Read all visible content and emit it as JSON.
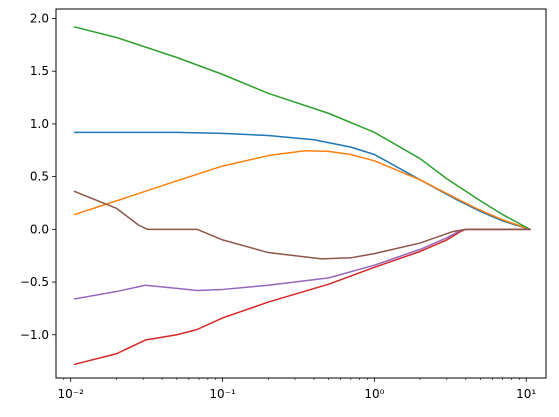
{
  "chart_data": {
    "type": "line",
    "title": "",
    "xlabel": "",
    "ylabel": "",
    "xscale": "log",
    "xlim": [
      0.008,
      13.5
    ],
    "ylim": [
      -1.41,
      2.09
    ],
    "grid": false,
    "legend": "none",
    "x_ticks": [
      {
        "value": 0.01,
        "label": "10⁻²"
      },
      {
        "value": 0.1,
        "label": "10⁻¹"
      },
      {
        "value": 1,
        "label": "10⁰"
      },
      {
        "value": 10,
        "label": "10¹"
      }
    ],
    "y_ticks": [
      {
        "value": 2.0,
        "label": "2.0"
      },
      {
        "value": 1.5,
        "label": "1.5"
      },
      {
        "value": 1.0,
        "label": "1.0"
      },
      {
        "value": 0.5,
        "label": "0.5"
      },
      {
        "value": 0.0,
        "label": "0.0"
      },
      {
        "value": -0.5,
        "label": "−0.5"
      },
      {
        "value": -1.0,
        "label": "−1.0"
      }
    ],
    "series": [
      {
        "color": "#1f77b4",
        "points": [
          [
            0.0106,
            0.92
          ],
          [
            0.02,
            0.92
          ],
          [
            0.05,
            0.92
          ],
          [
            0.1,
            0.91
          ],
          [
            0.2,
            0.89
          ],
          [
            0.4,
            0.85
          ],
          [
            0.7,
            0.78
          ],
          [
            1.0,
            0.71
          ],
          [
            2.0,
            0.47
          ],
          [
            3.5,
            0.28
          ],
          [
            5.0,
            0.17
          ],
          [
            7.0,
            0.08
          ],
          [
            10.6,
            0.0
          ]
        ]
      },
      {
        "color": "#ff7f0e",
        "points": [
          [
            0.0106,
            0.14
          ],
          [
            0.02,
            0.27
          ],
          [
            0.05,
            0.46
          ],
          [
            0.1,
            0.6
          ],
          [
            0.2,
            0.7
          ],
          [
            0.35,
            0.745
          ],
          [
            0.5,
            0.74
          ],
          [
            0.7,
            0.71
          ],
          [
            1.0,
            0.65
          ],
          [
            2.0,
            0.47
          ],
          [
            3.5,
            0.29
          ],
          [
            5.0,
            0.18
          ],
          [
            7.0,
            0.09
          ],
          [
            10.6,
            0.0
          ]
        ]
      },
      {
        "color": "#2ca02c",
        "points": [
          [
            0.0106,
            1.92
          ],
          [
            0.02,
            1.82
          ],
          [
            0.05,
            1.63
          ],
          [
            0.1,
            1.47
          ],
          [
            0.2,
            1.29
          ],
          [
            0.5,
            1.1
          ],
          [
            1.0,
            0.92
          ],
          [
            2.0,
            0.67
          ],
          [
            3.0,
            0.48
          ],
          [
            5.0,
            0.27
          ],
          [
            7.0,
            0.14
          ],
          [
            10.6,
            0.0
          ]
        ]
      },
      {
        "color": "#d62728",
        "points": [
          [
            0.0106,
            -1.28
          ],
          [
            0.02,
            -1.18
          ],
          [
            0.031,
            -1.05
          ],
          [
            0.05,
            -1.0
          ],
          [
            0.068,
            -0.95
          ],
          [
            0.1,
            -0.84
          ],
          [
            0.2,
            -0.69
          ],
          [
            0.5,
            -0.52
          ],
          [
            1.0,
            -0.36
          ],
          [
            2.0,
            -0.21
          ],
          [
            3.0,
            -0.1
          ],
          [
            3.7,
            -0.02
          ],
          [
            4.0,
            0.0
          ],
          [
            10.6,
            0.0
          ]
        ]
      },
      {
        "color": "#9467bd",
        "points": [
          [
            0.0106,
            -0.66
          ],
          [
            0.02,
            -0.59
          ],
          [
            0.031,
            -0.53
          ],
          [
            0.05,
            -0.56
          ],
          [
            0.068,
            -0.58
          ],
          [
            0.1,
            -0.57
          ],
          [
            0.2,
            -0.53
          ],
          [
            0.5,
            -0.46
          ],
          [
            1.0,
            -0.34
          ],
          [
            2.0,
            -0.19
          ],
          [
            3.0,
            -0.08
          ],
          [
            3.7,
            -0.01
          ],
          [
            4.0,
            0.0
          ],
          [
            10.6,
            0.0
          ]
        ]
      },
      {
        "color": "#8c564b",
        "points": [
          [
            0.0106,
            0.36
          ],
          [
            0.02,
            0.2
          ],
          [
            0.028,
            0.04
          ],
          [
            0.032,
            0.0
          ],
          [
            0.068,
            0.0
          ],
          [
            0.1,
            -0.1
          ],
          [
            0.2,
            -0.22
          ],
          [
            0.45,
            -0.28
          ],
          [
            0.7,
            -0.27
          ],
          [
            1.0,
            -0.23
          ],
          [
            2.0,
            -0.13
          ],
          [
            3.3,
            -0.02
          ],
          [
            4.0,
            0.0
          ],
          [
            10.6,
            0.0
          ]
        ]
      }
    ]
  }
}
